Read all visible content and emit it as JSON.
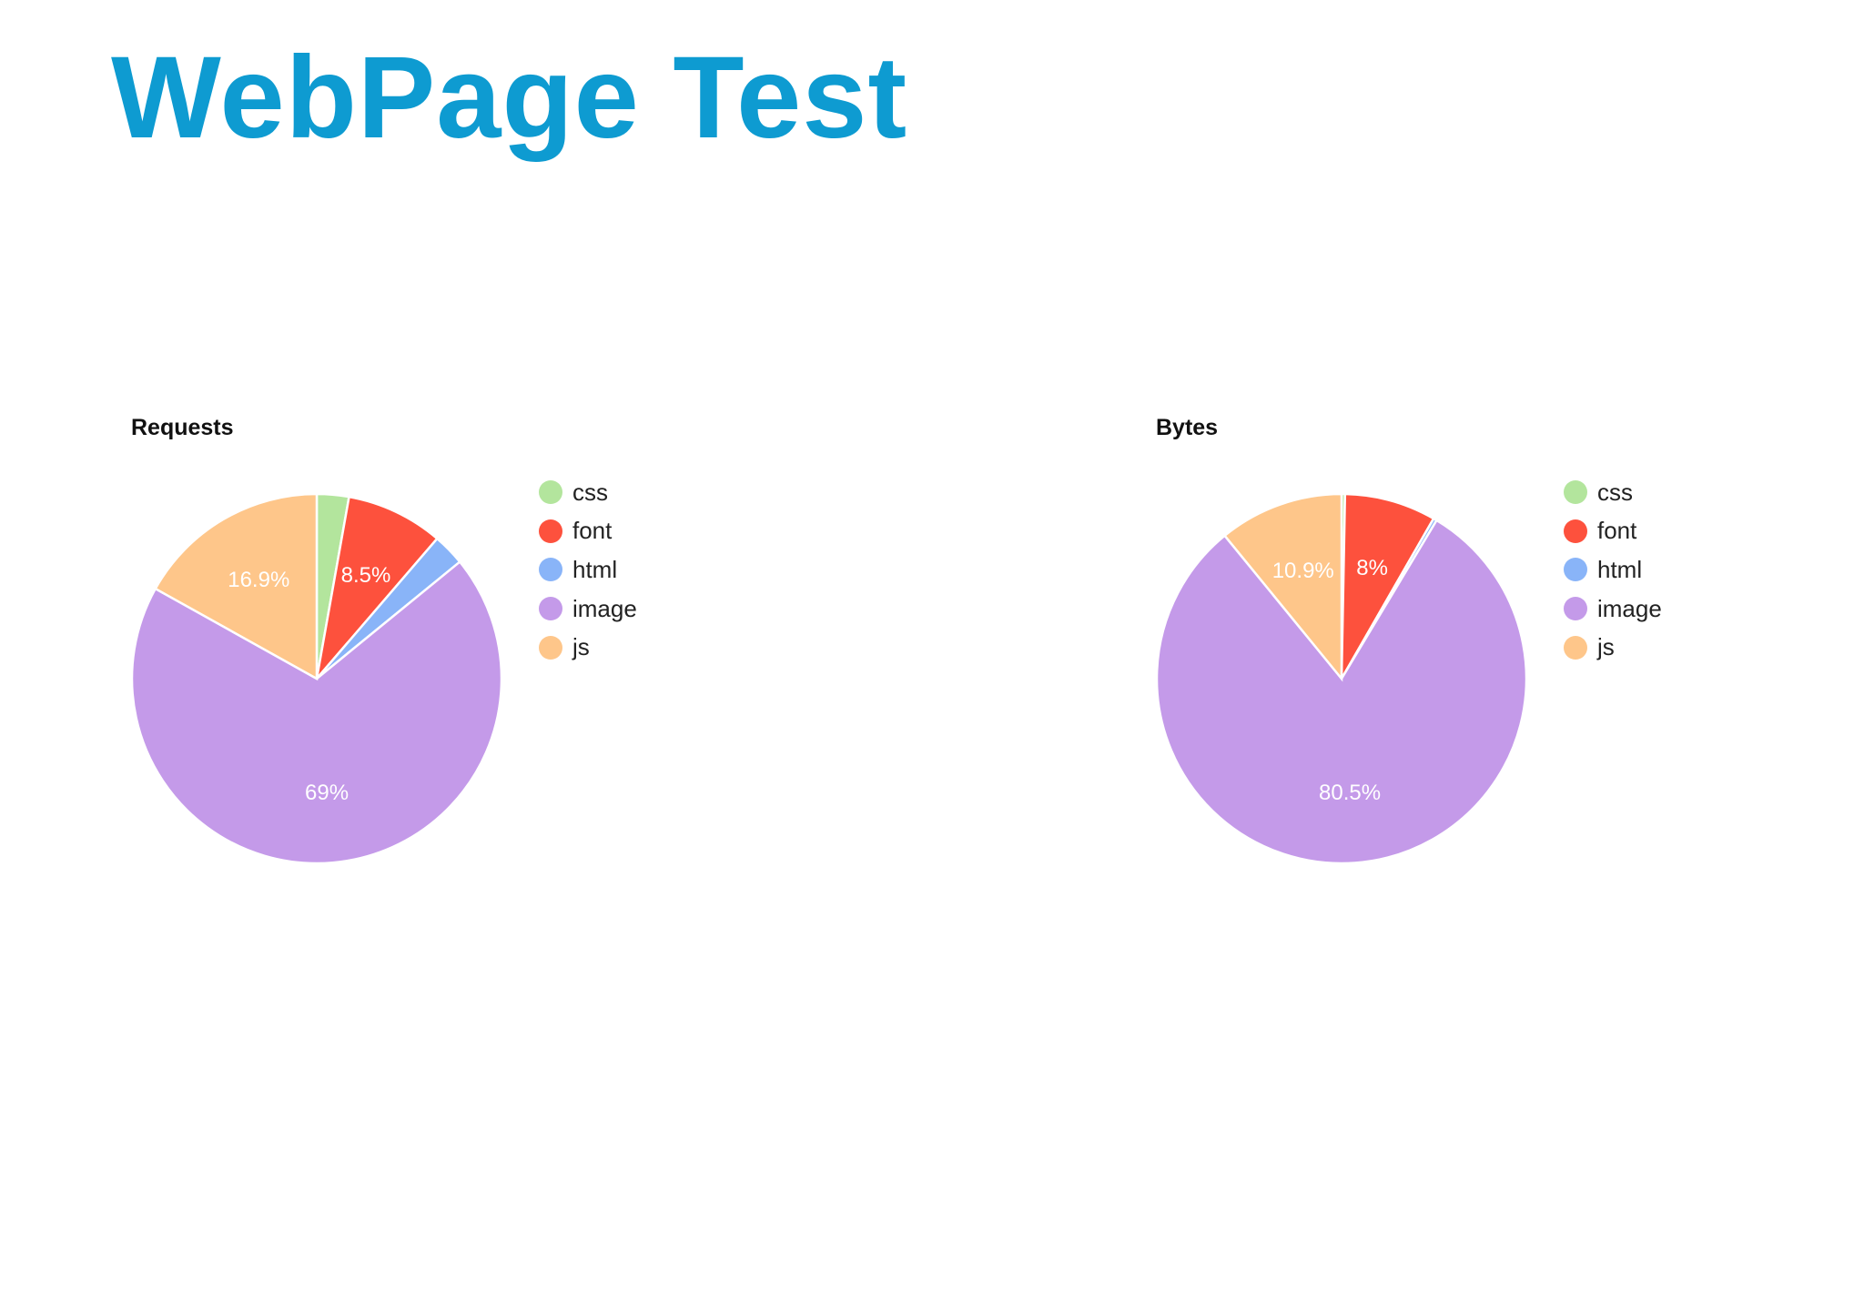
{
  "page": {
    "title": "WebPage Test"
  },
  "chart_data": [
    {
      "type": "pie",
      "title": "Requests",
      "legend_position": "right",
      "slices": [
        {
          "name": "css",
          "value": 2.8,
          "color": "#b3e59d",
          "label": ""
        },
        {
          "name": "font",
          "value": 8.5,
          "color": "#fd513d",
          "label": "8.5%"
        },
        {
          "name": "html",
          "value": 2.8,
          "color": "#89b4f8",
          "label": ""
        },
        {
          "name": "image",
          "value": 69.0,
          "color": "#c49ae9",
          "label": "69%"
        },
        {
          "name": "js",
          "value": 16.9,
          "color": "#fec68a",
          "label": "16.9%"
        }
      ]
    },
    {
      "type": "pie",
      "title": "Bytes",
      "legend_position": "right",
      "slices": [
        {
          "name": "css",
          "value": 0.3,
          "color": "#b3e59d",
          "label": ""
        },
        {
          "name": "font",
          "value": 8.0,
          "color": "#fd513d",
          "label": "8%"
        },
        {
          "name": "html",
          "value": 0.3,
          "color": "#89b4f8",
          "label": ""
        },
        {
          "name": "image",
          "value": 80.5,
          "color": "#c49ae9",
          "label": "80.5%"
        },
        {
          "name": "js",
          "value": 10.9,
          "color": "#fec68a",
          "label": "10.9%"
        }
      ]
    }
  ]
}
